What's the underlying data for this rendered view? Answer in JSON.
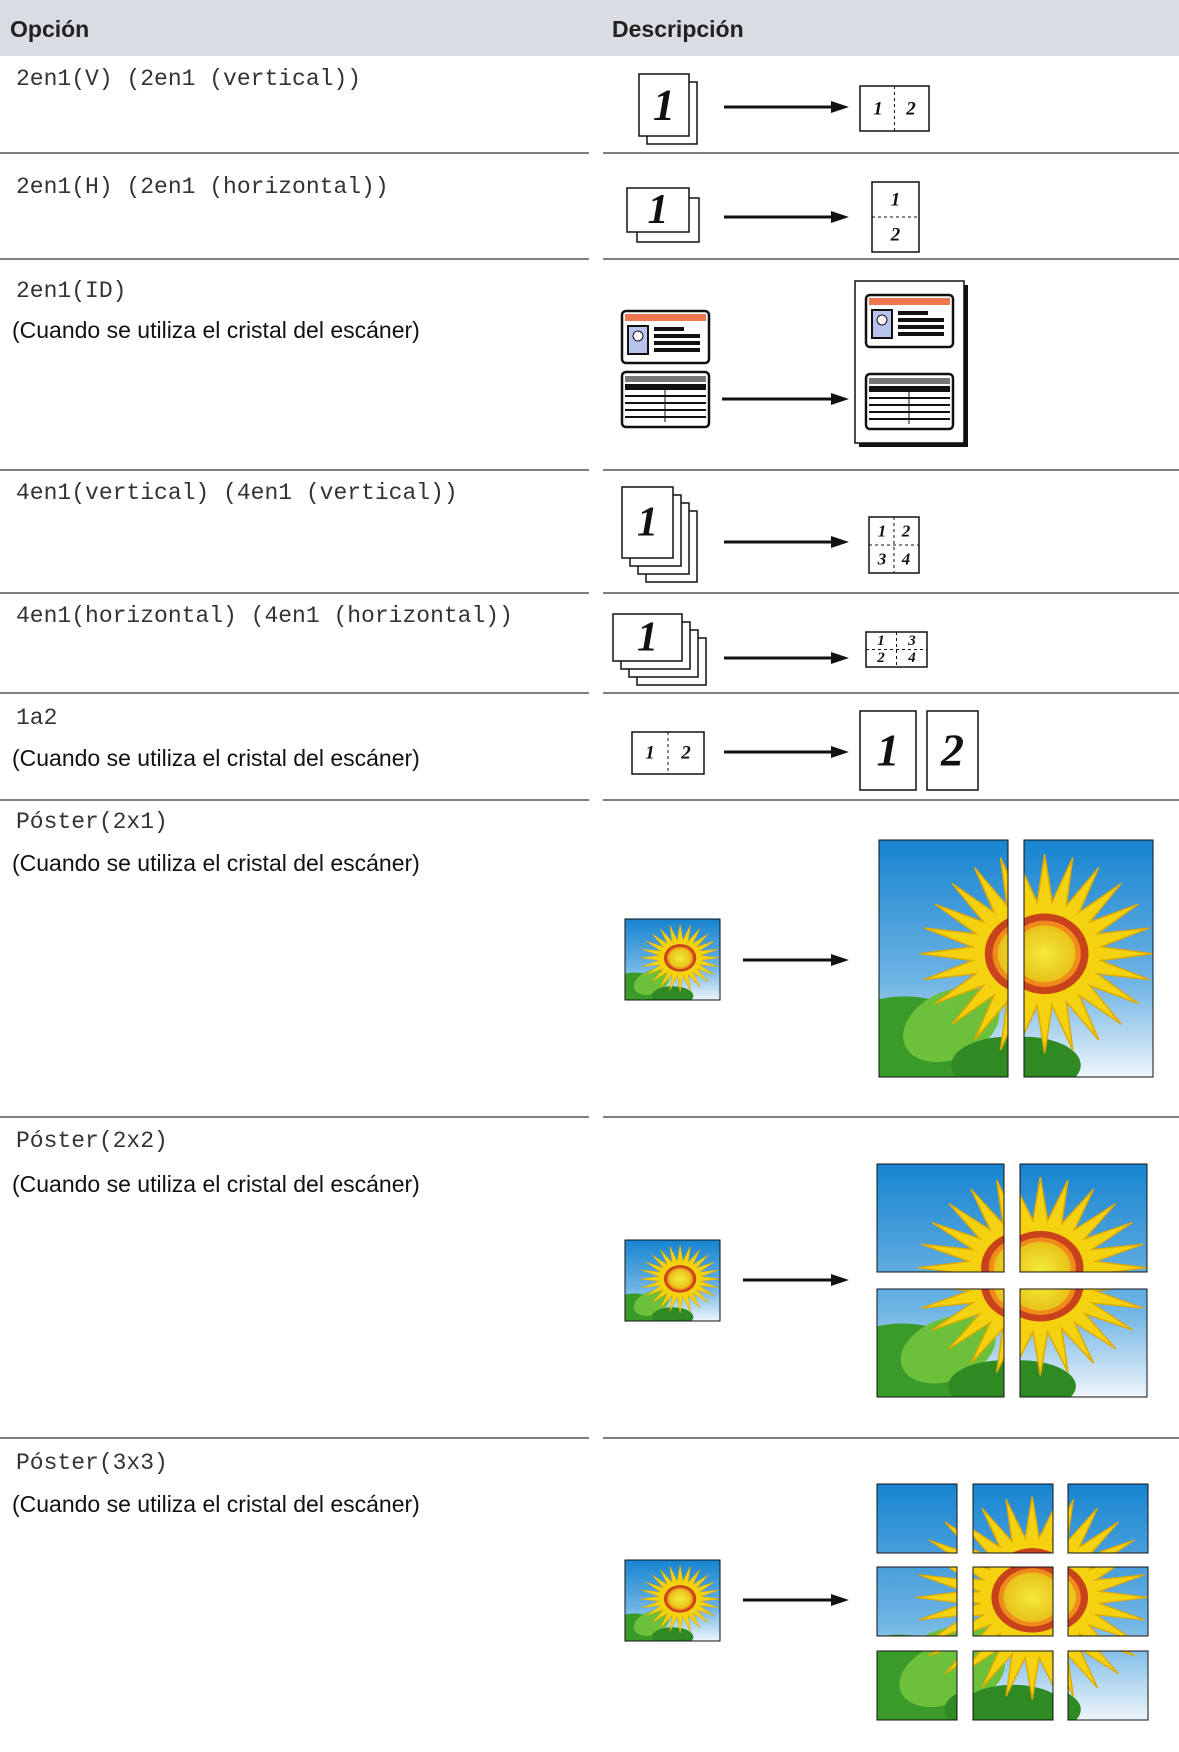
{
  "header": {
    "option": "Opción",
    "description": "Descripción"
  },
  "rows": [
    {
      "option": "2en1(V) (2en1 (vertical))",
      "source": [
        "1"
      ],
      "result": [
        "1",
        "2"
      ]
    },
    {
      "option": "2en1(H) (2en1 (horizontal))",
      "source": [
        "1"
      ],
      "result": [
        "1",
        "2"
      ]
    },
    {
      "option": "2en1(ID)",
      "note": "(Cuando se utiliza el cristal del escáner)"
    },
    {
      "option": "4en1(vertical) (4en1 (vertical))",
      "source": [
        "1"
      ],
      "result": [
        "1",
        "2",
        "3",
        "4"
      ]
    },
    {
      "option": "4en1(horizontal) (4en1 (horizontal))",
      "source": [
        "1"
      ],
      "result": [
        "1",
        "3",
        "2",
        "4"
      ]
    },
    {
      "option": "1a2",
      "note": "(Cuando se utiliza el cristal del escáner)",
      "source": [
        "1",
        "2"
      ],
      "result": [
        "1",
        "2"
      ]
    },
    {
      "option": "Póster(2x1)",
      "note": "(Cuando se utiliza el cristal del escáner)"
    },
    {
      "option": "Póster(2x2)",
      "note": "(Cuando se utiliza el cristal del escáner)"
    },
    {
      "option": "Póster(3x3)",
      "note": "(Cuando se utiliza el cristal del escáner)"
    }
  ]
}
